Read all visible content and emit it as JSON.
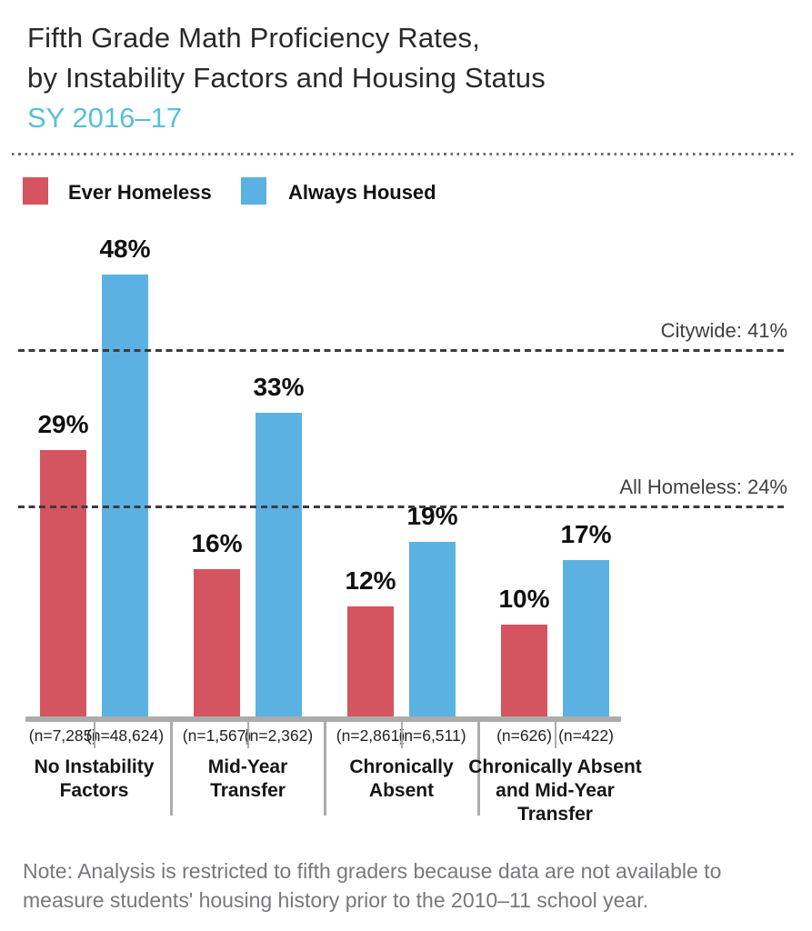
{
  "header": {
    "title_line1": "Fifth Grade Math Proficiency Rates,",
    "title_line2": "by Instability Factors and Housing Status",
    "subtitle": "SY 2016–17"
  },
  "legend": {
    "items": [
      {
        "label": "Ever Homeless",
        "color": "#d4545f"
      },
      {
        "label": "Always Housed",
        "color": "#5bb1e2"
      }
    ]
  },
  "colors": {
    "ever_homeless": "#d4545f",
    "always_housed": "#5bb1e2",
    "subtitle_teal": "#58c0d5",
    "structure_gray": "#acacac",
    "note_gray": "#77787b",
    "dashed_line": "#3c3c3c"
  },
  "chart_data": {
    "type": "bar",
    "title": "Fifth Grade Math Proficiency Rates, by Instability Factors and Housing Status, SY 2016–17",
    "categories": [
      "No Instability\nFactors",
      "Mid-Year\nTransfer",
      "Chronically\nAbsent",
      "Chronically Absent\nand Mid-Year\nTransfer"
    ],
    "series": [
      {
        "name": "Ever Homeless",
        "color": "#d4545f",
        "values": [
          29,
          16,
          12,
          10
        ],
        "n_labels": [
          "(n=7,285)",
          "(n=1,567)",
          "(n=2,861)",
          "(n=626)"
        ]
      },
      {
        "name": "Always Housed",
        "color": "#5bb1e2",
        "values": [
          48,
          33,
          19,
          17
        ],
        "n_labels": [
          "(n=48,624)",
          "(n=2,362)",
          "(n=6,511)",
          "(n=422)"
        ]
      }
    ],
    "reference_lines": [
      {
        "label": "Citywide: 41%",
        "value": 41
      },
      {
        "label": "All Homeless: 24%",
        "value": 24
      }
    ],
    "value_suffix": "%",
    "ylim": [
      0,
      50
    ],
    "grid": false,
    "legend_position": "top-left"
  },
  "note": "Note: Analysis is restricted to fifth graders because data are not available to\nmeasure students' housing history prior to the 2010–11 school year."
}
